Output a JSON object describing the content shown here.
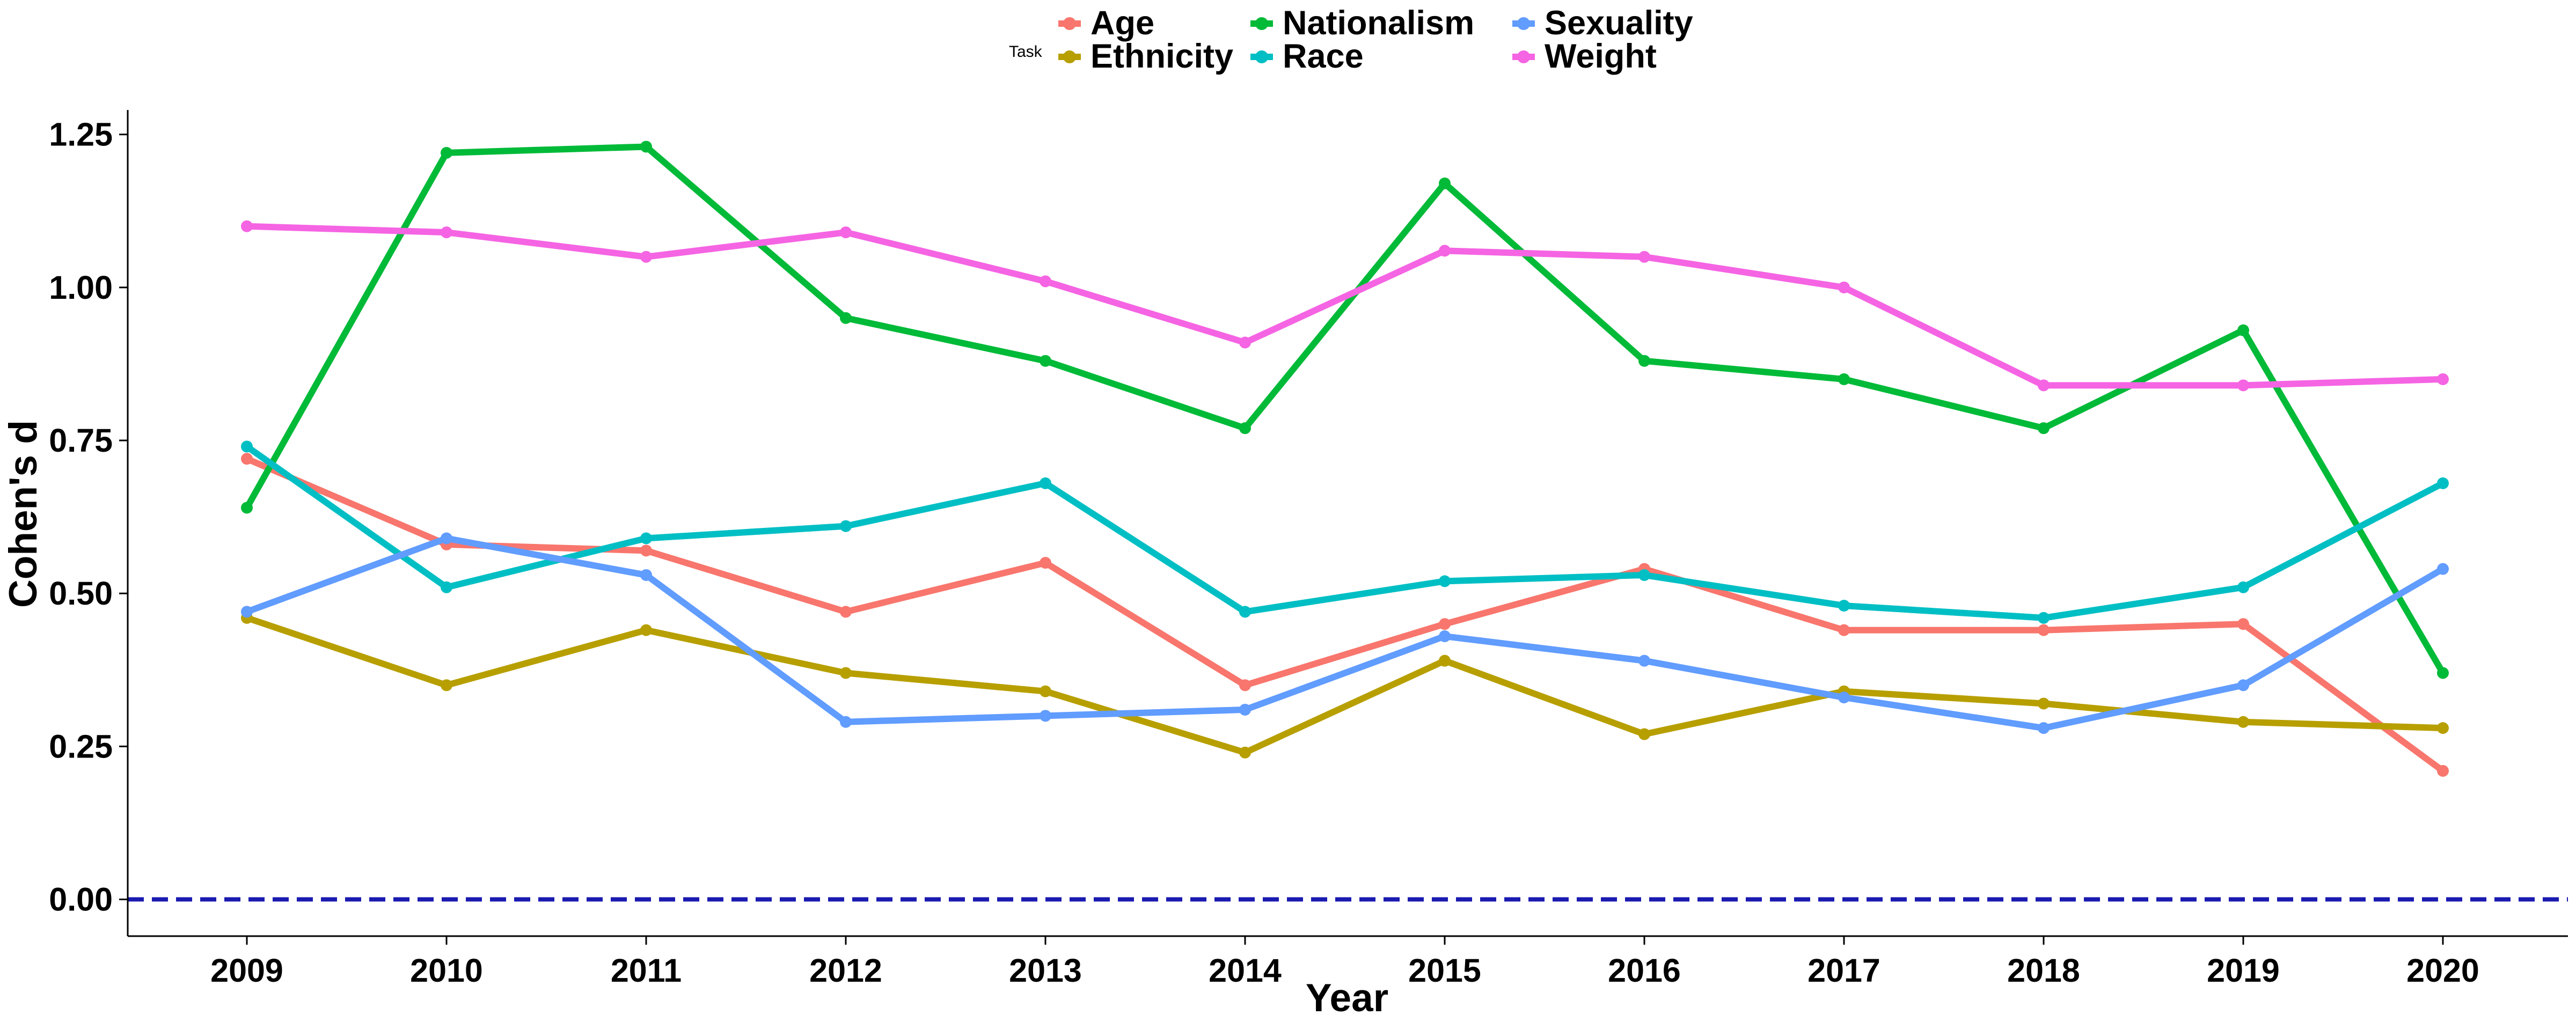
{
  "chart_data": {
    "type": "line",
    "title": "",
    "xlabel": "Year",
    "ylabel": "Cohen's d",
    "x": [
      "2009",
      "2010",
      "2011",
      "2012",
      "2013",
      "2014",
      "2015",
      "2016",
      "2017",
      "2018",
      "2019",
      "2020"
    ],
    "yticks": [
      "0.00",
      "0.25",
      "0.50",
      "0.75",
      "1.00",
      "1.25"
    ],
    "ylim": [
      -0.06,
      1.29
    ],
    "reference_line": {
      "y": 0,
      "style": "dashed",
      "color": "#1a1ab0"
    },
    "grid": false,
    "legend": {
      "title": "Task",
      "position": "top"
    },
    "series": [
      {
        "name": "Age",
        "color": "#F8766D",
        "values": [
          0.72,
          0.58,
          0.57,
          0.47,
          0.55,
          0.35,
          0.45,
          0.54,
          0.44,
          0.44,
          0.45,
          0.21
        ]
      },
      {
        "name": "Ethnicity",
        "color": "#B79F00",
        "values": [
          0.46,
          0.35,
          0.44,
          0.37,
          0.34,
          0.24,
          0.39,
          0.27,
          0.34,
          0.32,
          0.29,
          0.28
        ]
      },
      {
        "name": "Nationalism",
        "color": "#00BA38",
        "values": [
          0.64,
          1.22,
          1.23,
          0.95,
          0.88,
          0.77,
          1.17,
          0.88,
          0.85,
          0.77,
          0.93,
          0.37
        ]
      },
      {
        "name": "Race",
        "color": "#00BFC4",
        "values": [
          0.74,
          0.51,
          0.59,
          0.61,
          0.68,
          0.47,
          0.52,
          0.53,
          0.48,
          0.46,
          0.51,
          0.68
        ]
      },
      {
        "name": "Sexuality",
        "color": "#619CFF",
        "values": [
          0.47,
          0.59,
          0.53,
          0.29,
          0.3,
          0.31,
          0.43,
          0.39,
          0.33,
          0.28,
          0.35,
          0.54
        ]
      },
      {
        "name": "Weight",
        "color": "#F564E3",
        "values": [
          1.1,
          1.09,
          1.05,
          1.09,
          1.01,
          0.91,
          1.06,
          1.05,
          1.0,
          0.84,
          0.84,
          0.85
        ]
      }
    ]
  }
}
